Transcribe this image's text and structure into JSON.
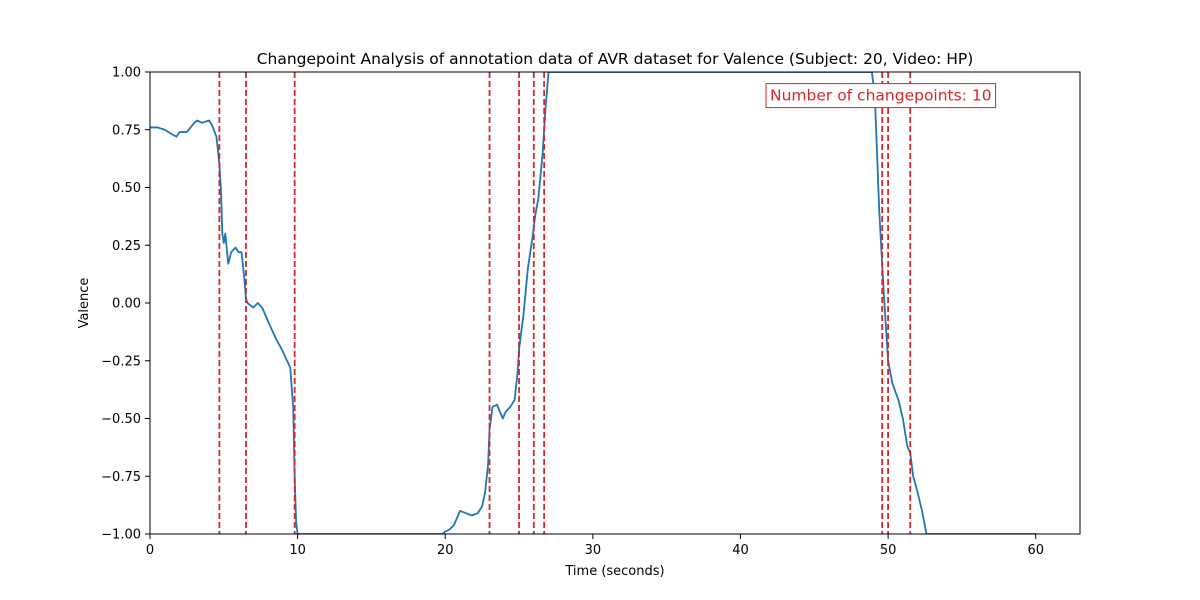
{
  "chart_data": {
    "type": "line",
    "title": "Changepoint Analysis of annotation data of AVR dataset for Valence (Subject: 20, Video: HP)",
    "xlabel": "Time (seconds)",
    "ylabel": "Valence",
    "xlim": [
      0,
      63
    ],
    "ylim": [
      -1.0,
      1.0
    ],
    "x_ticks": [
      0,
      10,
      20,
      30,
      40,
      50,
      60
    ],
    "y_ticks": [
      -1.0,
      -0.75,
      -0.5,
      -0.25,
      0.0,
      0.25,
      0.5,
      0.75,
      1.0
    ],
    "y_tick_labels": [
      "−1.00",
      "−0.75",
      "−0.50",
      "−0.25",
      "0.00",
      "0.25",
      "0.50",
      "0.75",
      "1.00"
    ],
    "x_tick_labels": [
      "0",
      "10",
      "20",
      "30",
      "40",
      "50",
      "60"
    ],
    "grid": false,
    "series": [
      {
        "color": "#1f77b4",
        "x": [
          0,
          0.5,
          1.0,
          1.5,
          1.8,
          2.0,
          2.5,
          3.0,
          3.2,
          3.5,
          4.0,
          4.2,
          4.5,
          4.7,
          4.8,
          4.9,
          5.0,
          5.1,
          5.3,
          5.5,
          5.8,
          6.0,
          6.2,
          6.4,
          6.5,
          6.6,
          6.8,
          7.0,
          7.3,
          7.6,
          8.0,
          8.5,
          9.0,
          9.5,
          9.7,
          9.8,
          9.9,
          10.0,
          15.0,
          19.8,
          20.0,
          20.3,
          20.6,
          21.0,
          21.4,
          21.8,
          22.2,
          22.5,
          22.7,
          22.9,
          23.0,
          23.2,
          23.5,
          23.9,
          24.1,
          24.4,
          24.7,
          24.9,
          25.0,
          25.3,
          25.6,
          25.9,
          26.1,
          26.3,
          26.6,
          26.8,
          27.0,
          27.2,
          48.9,
          49.1,
          49.4,
          49.7,
          50.0,
          50.3,
          50.7,
          51.0,
          51.3,
          51.5,
          51.7,
          52.0,
          52.3,
          52.6,
          53.0,
          55.0,
          60.0
        ],
        "y": [
          0.76,
          0.76,
          0.75,
          0.73,
          0.72,
          0.74,
          0.74,
          0.78,
          0.79,
          0.78,
          0.79,
          0.77,
          0.72,
          0.6,
          0.5,
          0.3,
          0.26,
          0.3,
          0.17,
          0.22,
          0.24,
          0.22,
          0.22,
          0.1,
          0.02,
          0.0,
          -0.01,
          -0.02,
          0.0,
          -0.02,
          -0.08,
          -0.15,
          -0.21,
          -0.28,
          -0.45,
          -0.75,
          -0.95,
          -1.0,
          -1.0,
          -1.0,
          -0.99,
          -0.98,
          -0.96,
          -0.9,
          -0.91,
          -0.92,
          -0.91,
          -0.88,
          -0.82,
          -0.7,
          -0.55,
          -0.45,
          -0.44,
          -0.5,
          -0.47,
          -0.45,
          -0.42,
          -0.3,
          -0.2,
          -0.05,
          0.15,
          0.28,
          0.38,
          0.45,
          0.65,
          0.85,
          1.0,
          1.0,
          1.0,
          0.9,
          0.4,
          0.05,
          -0.25,
          -0.35,
          -0.42,
          -0.5,
          -0.62,
          -0.65,
          -0.75,
          -0.82,
          -0.9,
          -1.0,
          -1.0,
          -1.0,
          -1.0
        ]
      }
    ],
    "changepoints": [
      4.7,
      6.5,
      9.8,
      23.0,
      25.0,
      26.0,
      26.7,
      49.6,
      50.0,
      51.5
    ],
    "changepoint_color": "#d62728",
    "annotation": {
      "text": "Number of changepoints: 10",
      "color": "#d62728",
      "x": 42.0,
      "y": 0.9
    }
  }
}
